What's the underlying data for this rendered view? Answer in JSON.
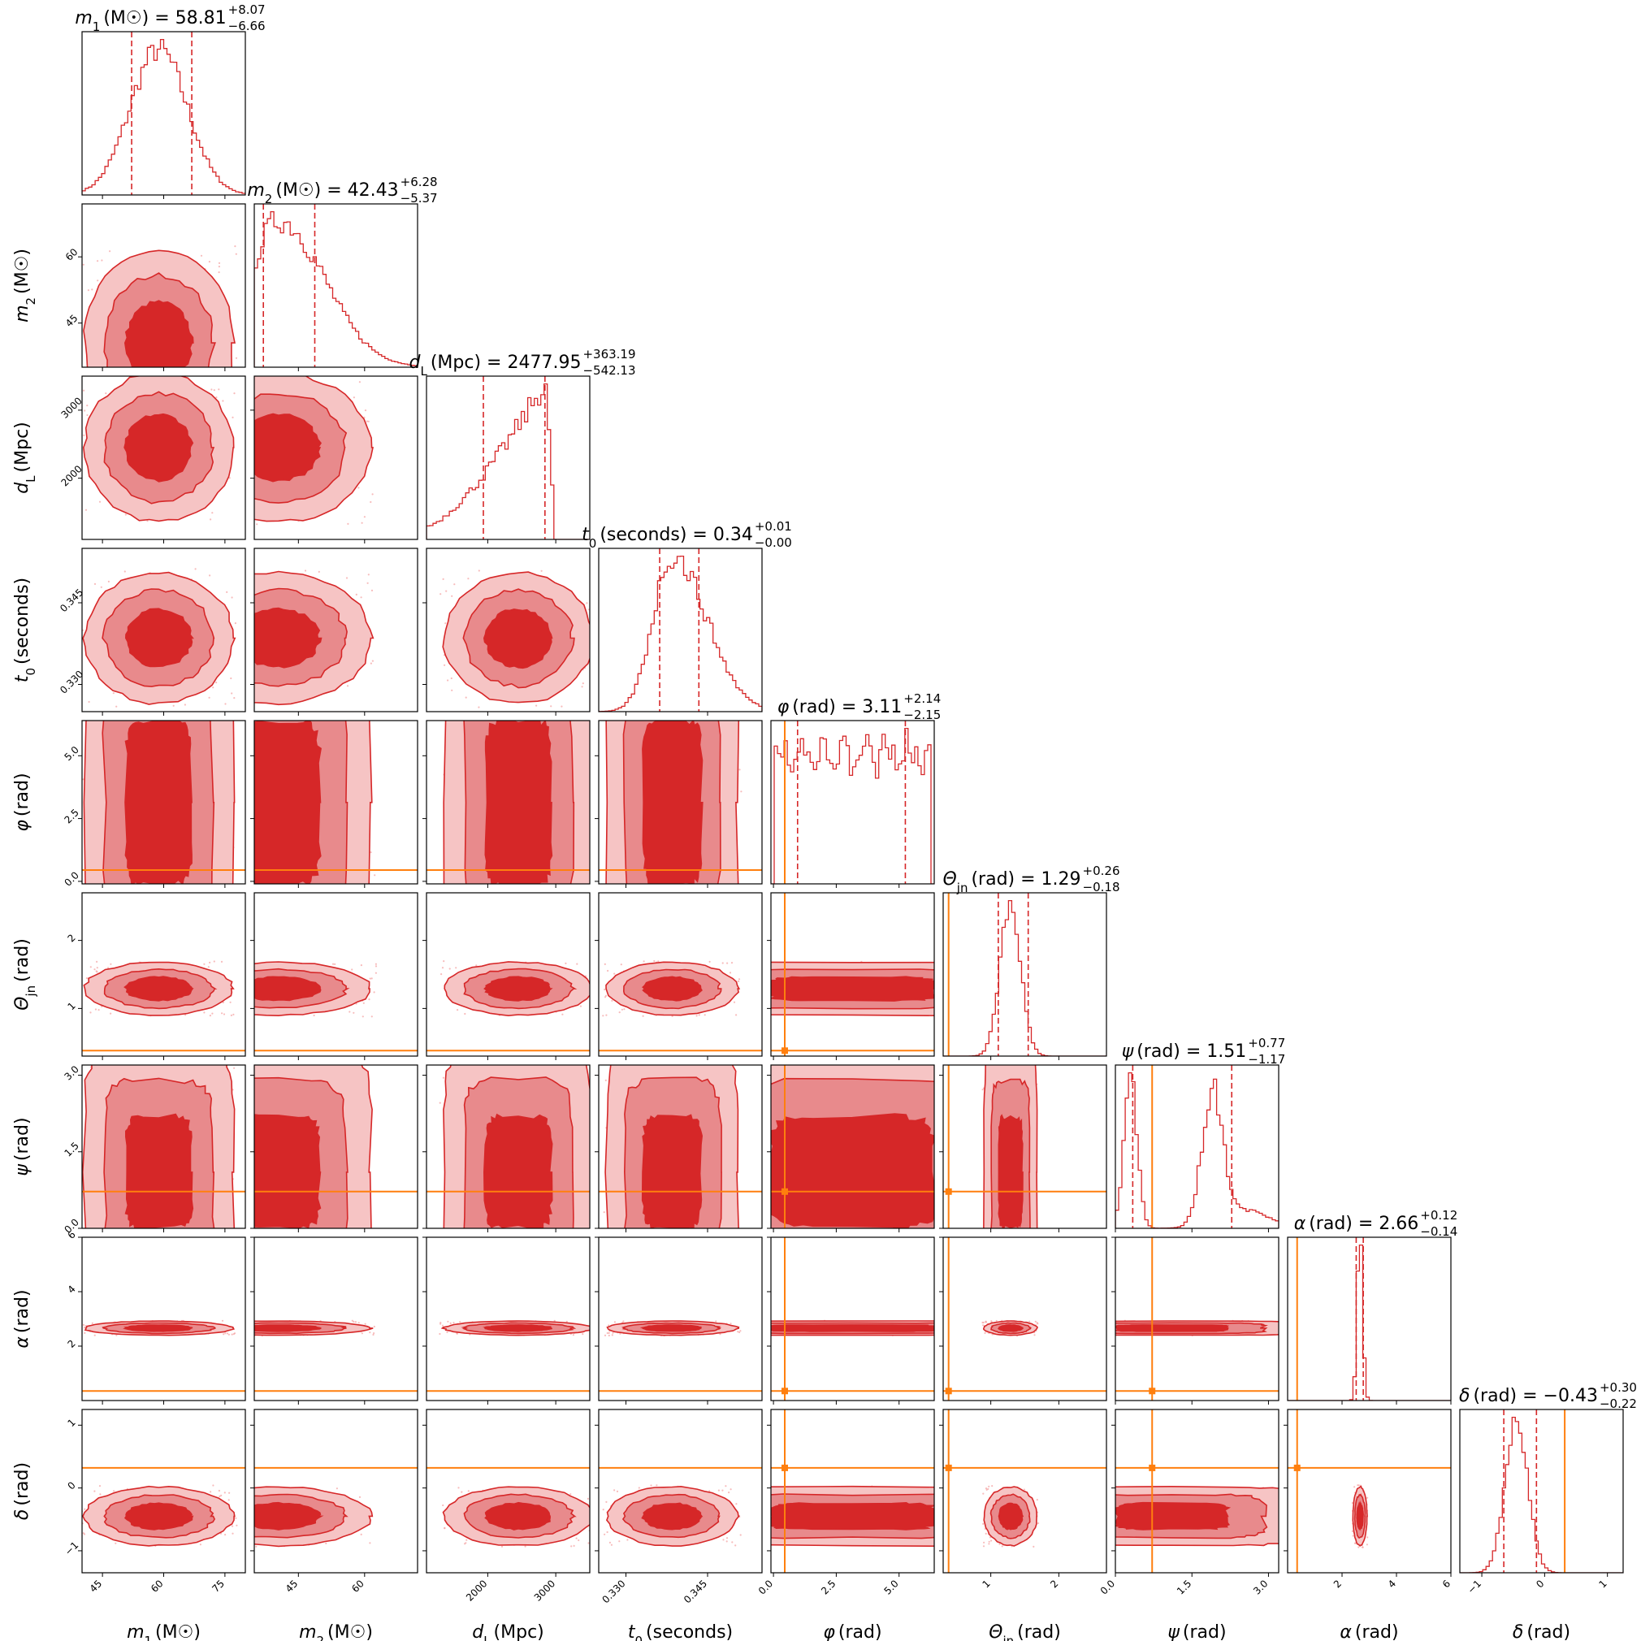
{
  "chart_data": {
    "type": "corner",
    "colors": {
      "posterior": "#d62728",
      "truth": "#ff7f0e",
      "frame": "#000000"
    },
    "quantile_lines": "dashed",
    "parameters": [
      {
        "key": "m1",
        "label": "m_1 (M☉)",
        "label_parts": [
          "m",
          "1",
          "(M☉)"
        ],
        "median": "58.81",
        "plus": "+8.07",
        "minus": "−6.66",
        "range": [
          40,
          80
        ],
        "ticks": [
          45,
          60,
          75
        ],
        "tick_labels": [
          "45",
          "60",
          "75"
        ],
        "q_lo": 52.15,
        "q_hi": 66.88,
        "truth": null,
        "dist": {
          "type": "gauss",
          "mu": 58.8,
          "sd": 7.0
        }
      },
      {
        "key": "m2",
        "label": "m_2 (M☉)",
        "label_parts": [
          "m",
          "2",
          "(M☉)"
        ],
        "median": "42.43",
        "plus": "+6.28",
        "minus": "−5.37",
        "range": [
          35,
          72
        ],
        "ticks": [
          45,
          60
        ],
        "tick_labels": [
          "45",
          "60"
        ],
        "q_lo": 37.06,
        "q_hi": 48.71,
        "truth": null,
        "dist": {
          "type": "gauss",
          "mu": 40.5,
          "sd": 6.5,
          "skew": 0.6
        }
      },
      {
        "key": "dl",
        "label": "d_L (Mpc)",
        "label_parts": [
          "d",
          "L",
          "(Mpc)"
        ],
        "median": "2477.95",
        "plus": "+363.19",
        "minus": "−542.13",
        "range": [
          1100,
          3500
        ],
        "ticks": [
          2000,
          3000
        ],
        "tick_labels": [
          "2000",
          "3000"
        ],
        "q_lo": 1935.82,
        "q_hi": 2841.14,
        "truth": null,
        "dist": {
          "type": "rise",
          "peak": 2850,
          "start": 1100,
          "end": 2980
        }
      },
      {
        "key": "t0",
        "label": "t_0 (seconds)",
        "label_parts": [
          "t",
          "0",
          "(seconds)"
        ],
        "median": "0.34",
        "plus": "+0.01",
        "minus": "−0.00",
        "range": [
          0.325,
          0.355
        ],
        "ticks": [
          0.33,
          0.345
        ],
        "tick_labels": [
          "0.330",
          "0.345"
        ],
        "q_lo": 0.3362,
        "q_hi": 0.3434,
        "truth": null,
        "dist": {
          "type": "gauss",
          "mu": 0.3385,
          "sd": 0.0035,
          "skew": 0.8
        }
      },
      {
        "key": "phi",
        "label": "φ (rad)",
        "label_parts": [
          "φ",
          "",
          "(rad)"
        ],
        "median": "3.11",
        "plus": "+2.14",
        "minus": "−2.15",
        "range": [
          -0.1,
          6.4
        ],
        "ticks": [
          0.0,
          2.5,
          5.0
        ],
        "tick_labels": [
          "0.0",
          "2.5",
          "5.0"
        ],
        "q_lo": 0.96,
        "q_hi": 5.25,
        "truth": 0.45,
        "dist": {
          "type": "flat",
          "lo": 0.0,
          "hi": 6.28
        }
      },
      {
        "key": "thetajn",
        "label": "Θ_jn (rad)",
        "label_parts": [
          "Θ",
          "jn",
          "(rad)"
        ],
        "median": "1.29",
        "plus": "+0.26",
        "minus": "−0.18",
        "range": [
          0.3,
          2.7
        ],
        "ticks": [
          1,
          2
        ],
        "tick_labels": [
          "1",
          "2"
        ],
        "q_lo": 1.11,
        "q_hi": 1.55,
        "truth": 0.38,
        "dist": {
          "type": "gauss",
          "mu": 1.29,
          "sd": 0.15
        }
      },
      {
        "key": "psi",
        "label": "ψ (rad)",
        "label_parts": [
          "ψ",
          "",
          "(rad)"
        ],
        "median": "1.51",
        "plus": "+0.77",
        "minus": "−1.17",
        "range": [
          0.0,
          3.2
        ],
        "ticks": [
          0.0,
          1.5,
          3.0
        ],
        "tick_labels": [
          "0.0",
          "1.5",
          "3.0"
        ],
        "q_lo": 0.34,
        "q_hi": 2.28,
        "truth": 0.72,
        "dist": {
          "type": "bimodal",
          "a": 0.3,
          "b": 1.9,
          "sa": 0.13,
          "sb": 0.2
        }
      },
      {
        "key": "alpha",
        "label": "α (rad)",
        "label_parts": [
          "α",
          "",
          "(rad)"
        ],
        "median": "2.66",
        "plus": "+0.12",
        "minus": "−0.14",
        "range": [
          0.0,
          6.0
        ],
        "ticks": [
          2,
          4,
          6
        ],
        "tick_labels": [
          "2",
          "4",
          "6"
        ],
        "q_lo": 2.52,
        "q_hi": 2.78,
        "truth": 0.35,
        "dist": {
          "type": "gauss",
          "mu": 2.66,
          "sd": 0.1
        }
      },
      {
        "key": "delta",
        "label": "δ (rad)",
        "label_parts": [
          "δ",
          "",
          "(rad)"
        ],
        "median": "−0.43",
        "plus": "+0.30",
        "minus": "−0.22",
        "range": [
          -1.35,
          1.25
        ],
        "ticks": [
          -1,
          0,
          1
        ],
        "tick_labels": [
          "−1",
          "0",
          "1"
        ],
        "q_lo": -0.65,
        "q_hi": -0.13,
        "truth": 0.32,
        "dist": {
          "type": "gauss",
          "mu": -0.45,
          "sd": 0.18
        }
      }
    ]
  }
}
